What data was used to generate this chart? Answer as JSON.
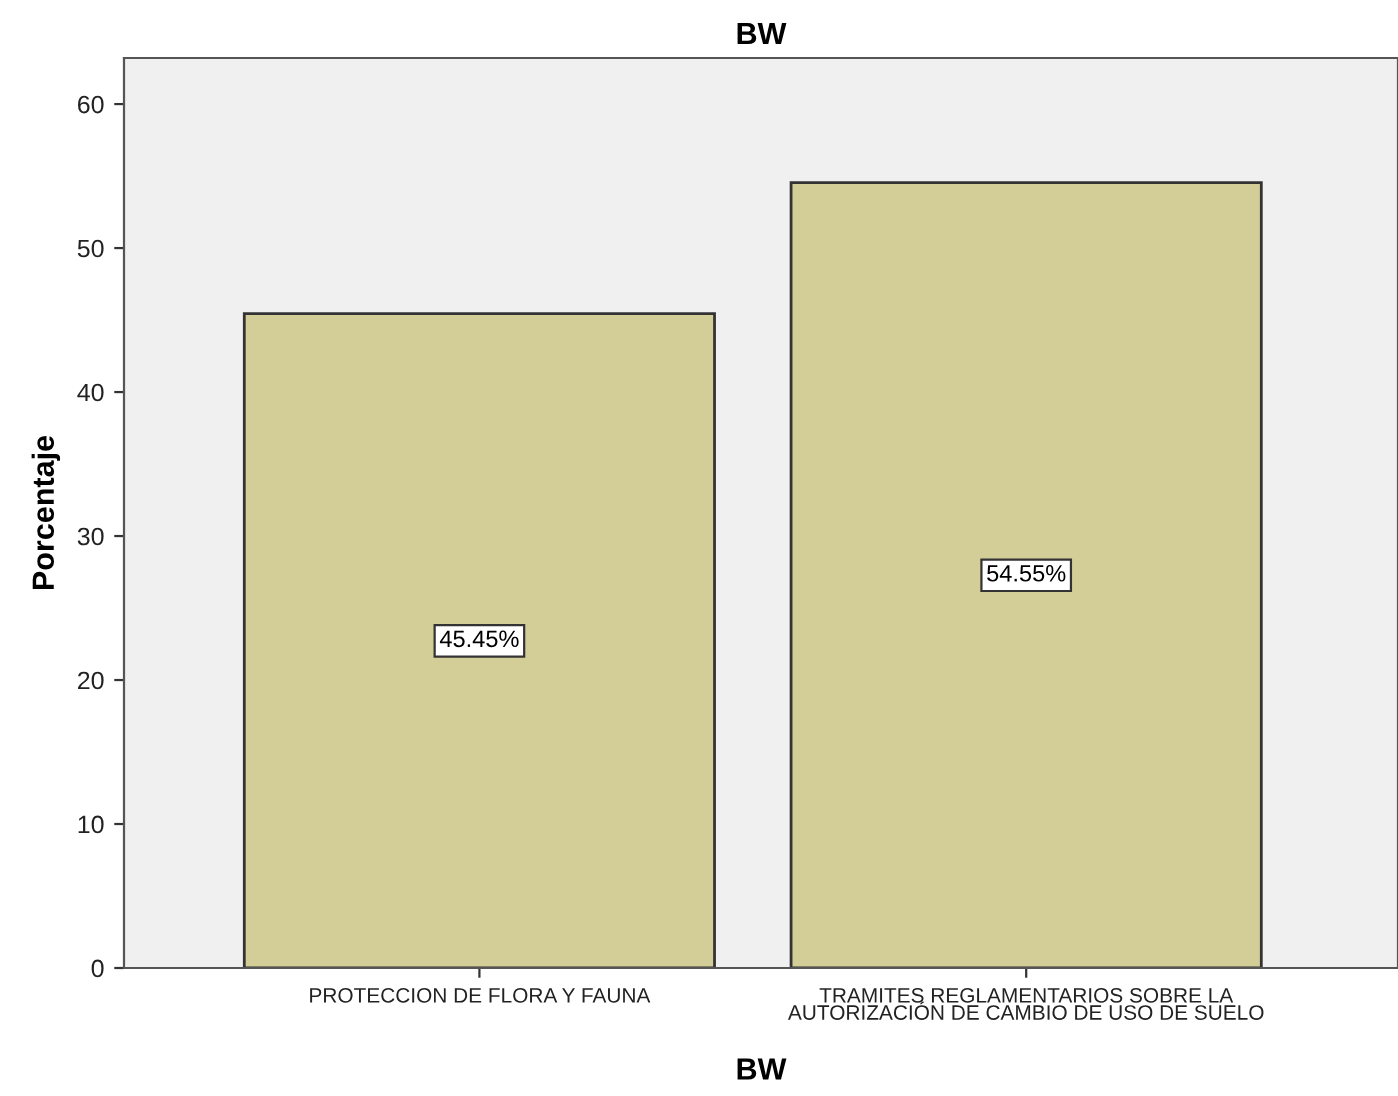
{
  "chart_data": {
    "type": "bar",
    "title": "BW",
    "xlabel": "BW",
    "ylabel": "Porcentaje",
    "categories": [
      "PROTECCION DE FLORA Y FAUNA",
      "TRAMITES REGLAMENTARIOS SOBRE LA\nAUTORIZACIÓN DE CAMBIO DE USO DE SUELO"
    ],
    "values": [
      45.45,
      54.55
    ],
    "value_labels": [
      "45.45%",
      "54.55%"
    ],
    "color": "#d3ce97",
    "ylim": [
      0,
      63.2
    ],
    "yticks": [
      0,
      10,
      20,
      30,
      40,
      50,
      60
    ],
    "grid": false
  }
}
